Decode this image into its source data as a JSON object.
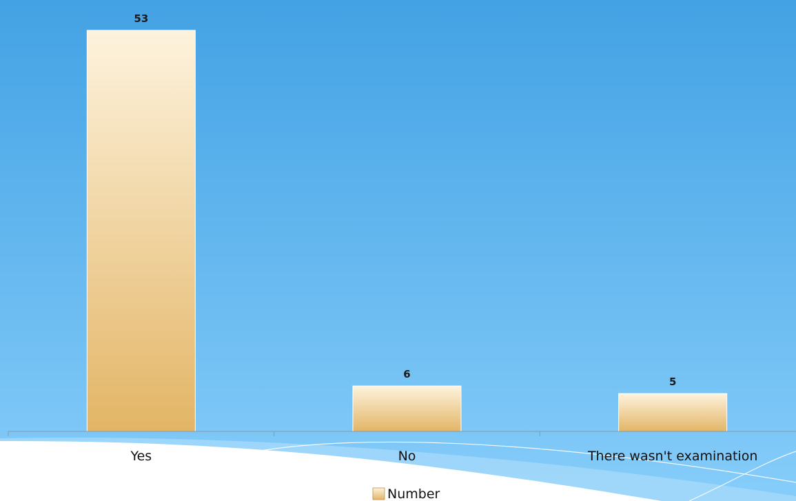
{
  "chart_data": {
    "type": "bar",
    "categories": [
      "Yes",
      "No",
      "There wasn't examination"
    ],
    "series": [
      {
        "name": "Number",
        "values": [
          53,
          6,
          5
        ]
      }
    ],
    "data_labels": [
      "53",
      "6",
      "5"
    ],
    "ylim": [
      0,
      53
    ],
    "grid": false,
    "legend_position": "bottom",
    "colors": {
      "bar_top": "#fdf3dd",
      "bar_bottom": "#e3b566",
      "bar_edge": "#ffffff",
      "background_top": "#43a2e4",
      "background_bottom": "#86cdfa",
      "axis": "#8a9aa8"
    }
  }
}
